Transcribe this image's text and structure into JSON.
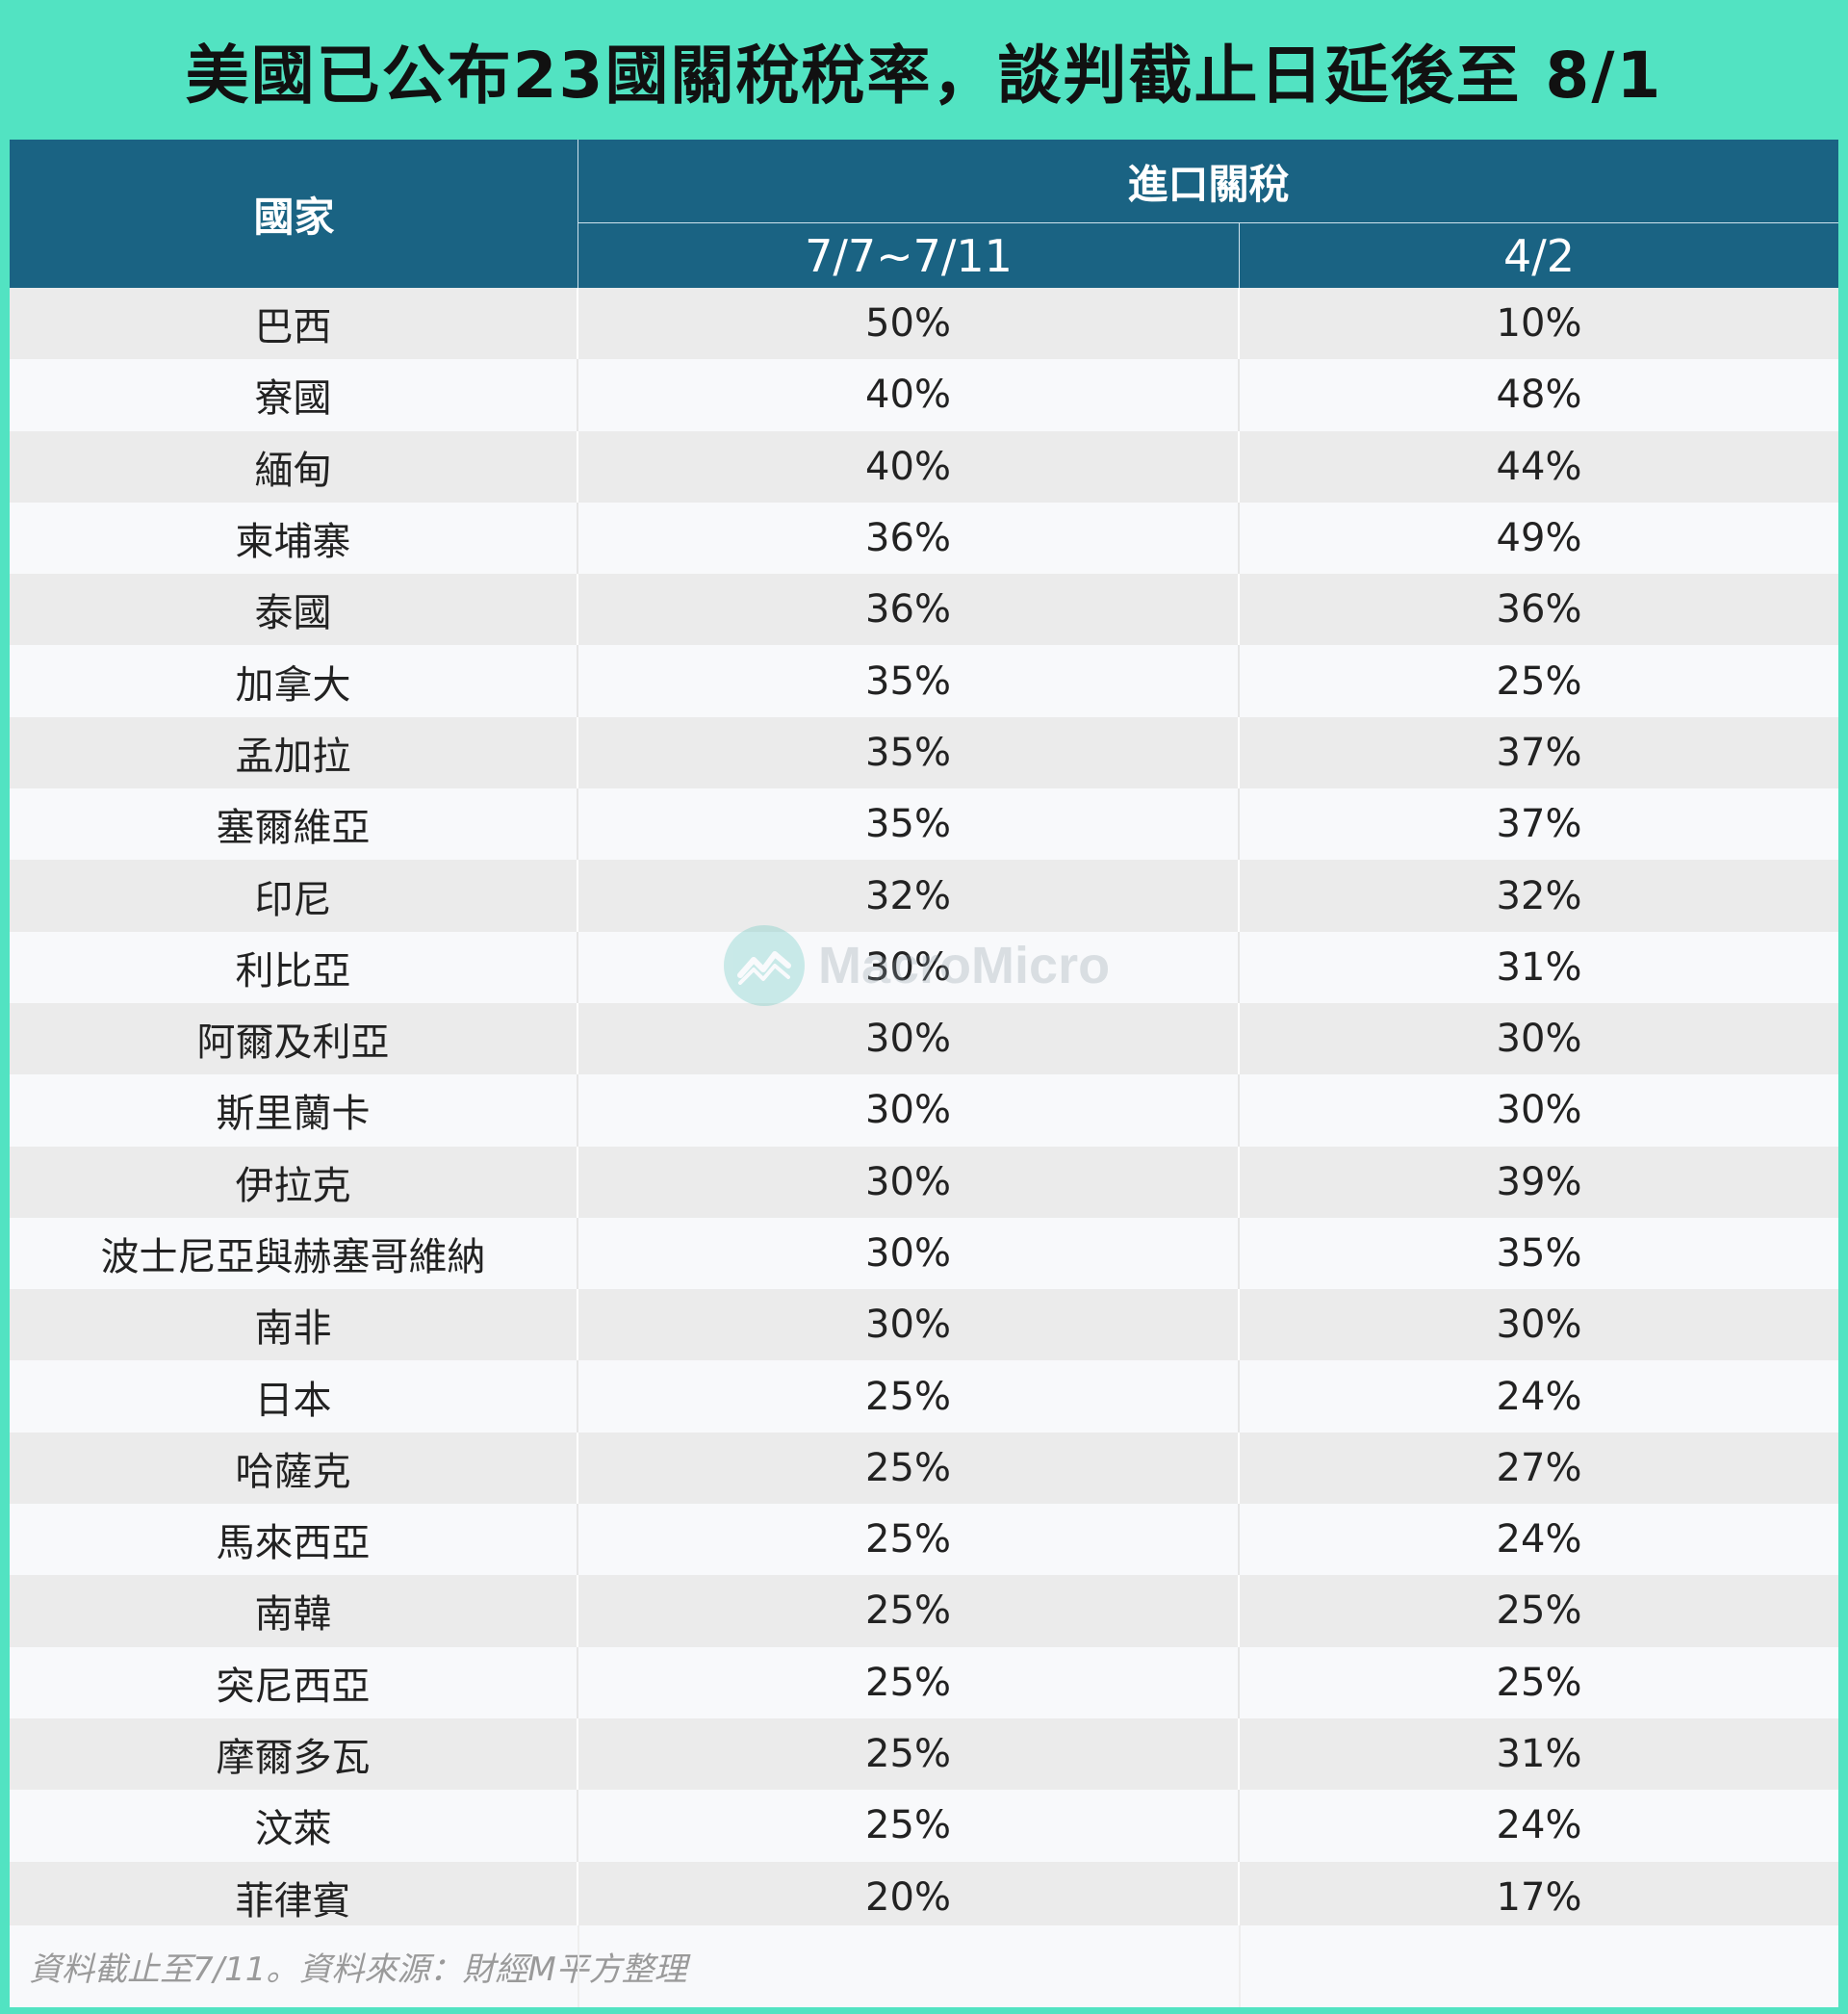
{
  "title": "美國已公布23國關稅稅率，談判截止日延後至 8/1",
  "header": {
    "country": "國家",
    "group": "進口關稅",
    "col1": "7/7~7/11",
    "col2": "4/2"
  },
  "chart_data": {
    "type": "table",
    "columns": [
      "國家",
      "7/7~7/11",
      "4/2"
    ],
    "rows": [
      [
        "巴西",
        "50%",
        "10%"
      ],
      [
        "寮國",
        "40%",
        "48%"
      ],
      [
        "緬甸",
        "40%",
        "44%"
      ],
      [
        "柬埔寨",
        "36%",
        "49%"
      ],
      [
        "泰國",
        "36%",
        "36%"
      ],
      [
        "加拿大",
        "35%",
        "25%"
      ],
      [
        "孟加拉",
        "35%",
        "37%"
      ],
      [
        "塞爾維亞",
        "35%",
        "37%"
      ],
      [
        "印尼",
        "32%",
        "32%"
      ],
      [
        "利比亞",
        "30%",
        "31%"
      ],
      [
        "阿爾及利亞",
        "30%",
        "30%"
      ],
      [
        "斯里蘭卡",
        "30%",
        "30%"
      ],
      [
        "伊拉克",
        "30%",
        "39%"
      ],
      [
        "波士尼亞與赫塞哥維納",
        "30%",
        "35%"
      ],
      [
        "南非",
        "30%",
        "30%"
      ],
      [
        "日本",
        "25%",
        "24%"
      ],
      [
        "哈薩克",
        "25%",
        "27%"
      ],
      [
        "馬來西亞",
        "25%",
        "24%"
      ],
      [
        "南韓",
        "25%",
        "25%"
      ],
      [
        "突尼西亞",
        "25%",
        "25%"
      ],
      [
        "摩爾多瓦",
        "25%",
        "31%"
      ],
      [
        "汶萊",
        "25%",
        "24%"
      ],
      [
        "菲律賓",
        "20%",
        "17%"
      ]
    ]
  },
  "footer": "資料截止至7/11。資料來源：財經M平方整理",
  "watermark": "MacroMicro",
  "colors": {
    "background": "#52e3c2",
    "header": "#1a6383",
    "row_odd": "#ebebeb",
    "row_even": "#f8f9fb"
  }
}
